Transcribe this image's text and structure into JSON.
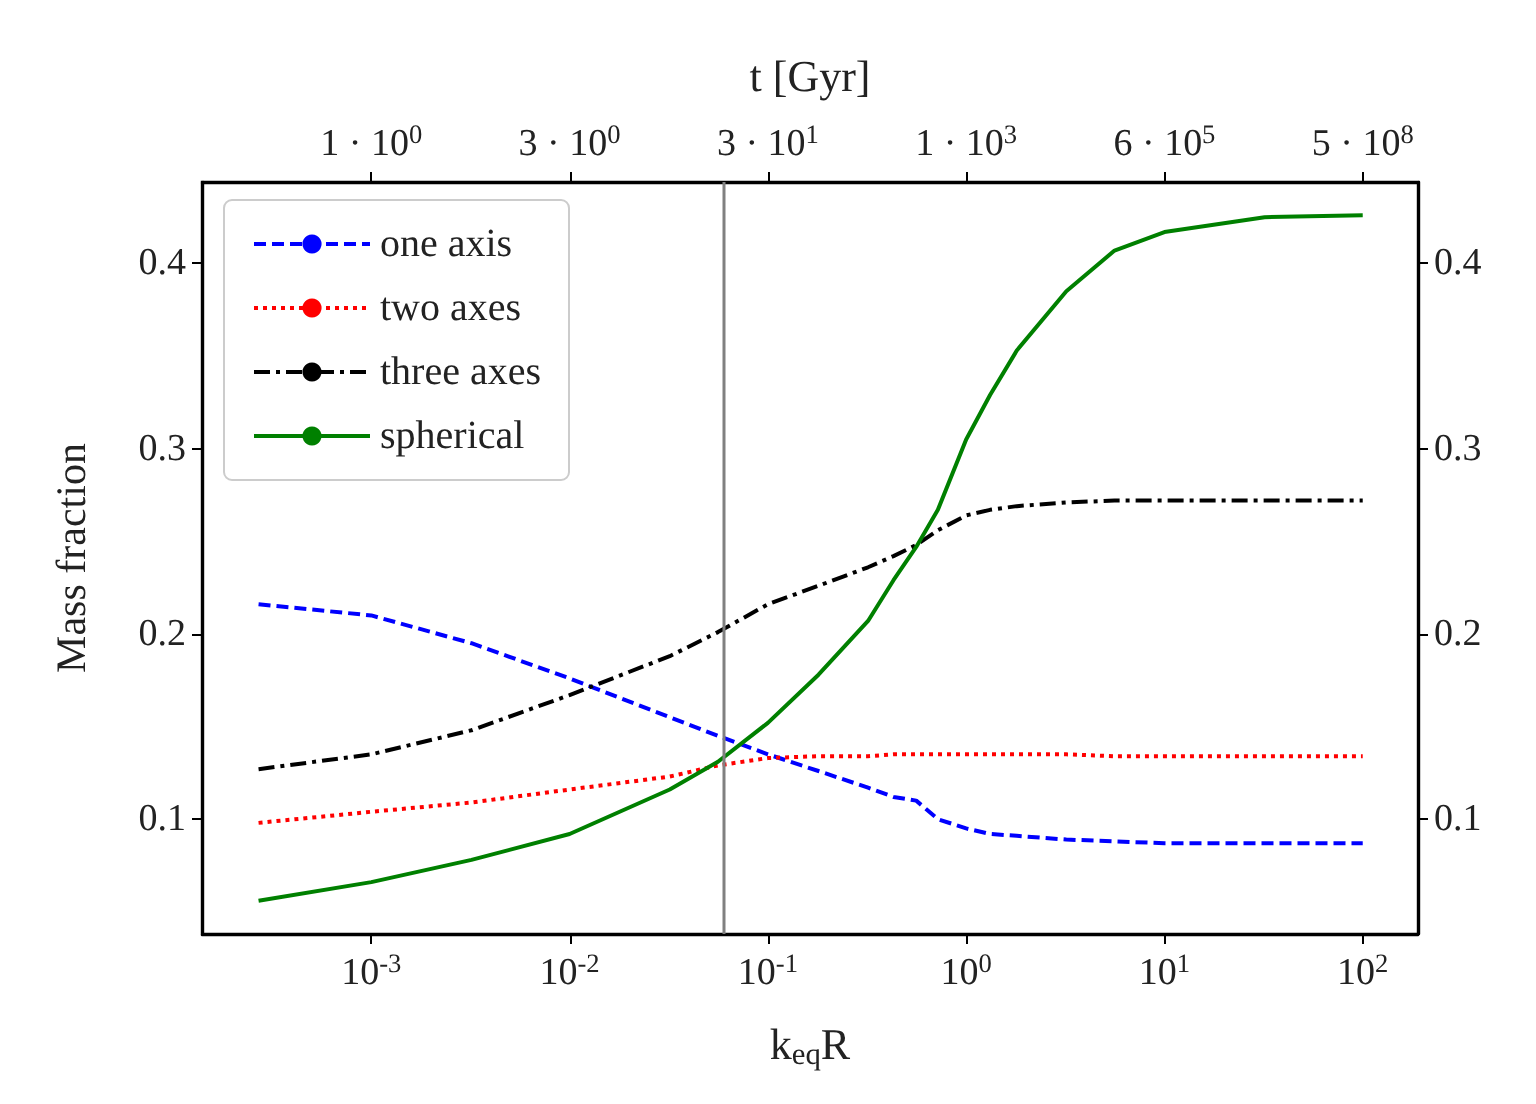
{
  "chart_data": {
    "type": "line",
    "xlabel": "k$_{eq}$R",
    "ylabel": "Mass fraction",
    "x2label": "t [Gyr]",
    "log": "x",
    "x": [
      0.00027,
      0.001,
      0.0032,
      0.01,
      0.032,
      0.056,
      0.1,
      0.18,
      0.32,
      0.43,
      0.56,
      0.72,
      1,
      1.32,
      1.8,
      3.2,
      5.6,
      10,
      32,
      100
    ],
    "series": [
      {
        "name": "one axis",
        "color": "#0000ff",
        "line_style": "dashed",
        "values": [
          0.216,
          0.21,
          0.195,
          0.176,
          0.155,
          0.145,
          0.135,
          0.126,
          0.117,
          0.112,
          0.11,
          0.1,
          0.095,
          0.092,
          0.091,
          0.089,
          0.088,
          0.087,
          0.087,
          0.087
        ]
      },
      {
        "name": "two axes",
        "color": "#ff0000",
        "line_style": "dotted",
        "values": [
          0.098,
          0.104,
          0.109,
          0.116,
          0.123,
          0.129,
          0.133,
          0.134,
          0.134,
          0.135,
          0.135,
          0.135,
          0.135,
          0.135,
          0.135,
          0.135,
          0.134,
          0.134,
          0.134,
          0.134
        ]
      },
      {
        "name": "three axes",
        "color": "#000000",
        "line_style": "dashdot",
        "values": [
          0.127,
          0.135,
          0.148,
          0.167,
          0.188,
          0.201,
          0.216,
          0.226,
          0.236,
          0.242,
          0.248,
          0.256,
          0.264,
          0.267,
          0.269,
          0.271,
          0.272,
          0.272,
          0.272,
          0.272
        ]
      },
      {
        "name": "spherical",
        "color": "#008000",
        "line_style": "solid",
        "values": [
          0.056,
          0.066,
          0.078,
          0.092,
          0.116,
          0.131,
          0.152,
          0.178,
          0.207,
          0.229,
          0.247,
          0.267,
          0.305,
          0.329,
          0.353,
          0.385,
          0.407,
          0.417,
          0.425,
          0.426
        ]
      }
    ],
    "xlim": [
      0.00014,
      190
    ],
    "xticks": [
      {
        "value": 0.001,
        "label": "10$^{-3}$"
      },
      {
        "value": 0.01,
        "label": "10$^{-2}$"
      },
      {
        "value": 0.1,
        "label": "10$^{-1}$"
      },
      {
        "value": 1,
        "label": "10$^{0}$"
      },
      {
        "value": 10,
        "label": "10$^{1}$"
      },
      {
        "value": 100,
        "label": "10$^{2}$"
      }
    ],
    "annotations": [
      {
        "text": "1 · 10$^{0}$",
        "x": 0.001
      },
      {
        "text": "3 · 10$^{0}$",
        "x": 0.01
      },
      {
        "text": "3 · 10$^{1}$",
        "x": 0.1
      },
      {
        "text": "1 · 10$^{3}$",
        "x": 1
      },
      {
        "text": "6 · 10$^{5}$",
        "x": 10
      },
      {
        "text": "5 · 10$^{8}$",
        "x": 100
      }
    ],
    "ylim": [
      0.038,
      0.444
    ],
    "yticks": [
      0.1,
      0.2,
      0.3,
      0.4
    ],
    "y2lim": [
      0.038,
      0.444
    ],
    "y2ticks": [
      0.1,
      0.2,
      0.3,
      0.4
    ],
    "ref_lines": [
      {
        "axis": "x",
        "value": 0.057,
        "color": "#808080"
      }
    ],
    "legend": "top left",
    "grid": false,
    "marker": "none"
  }
}
